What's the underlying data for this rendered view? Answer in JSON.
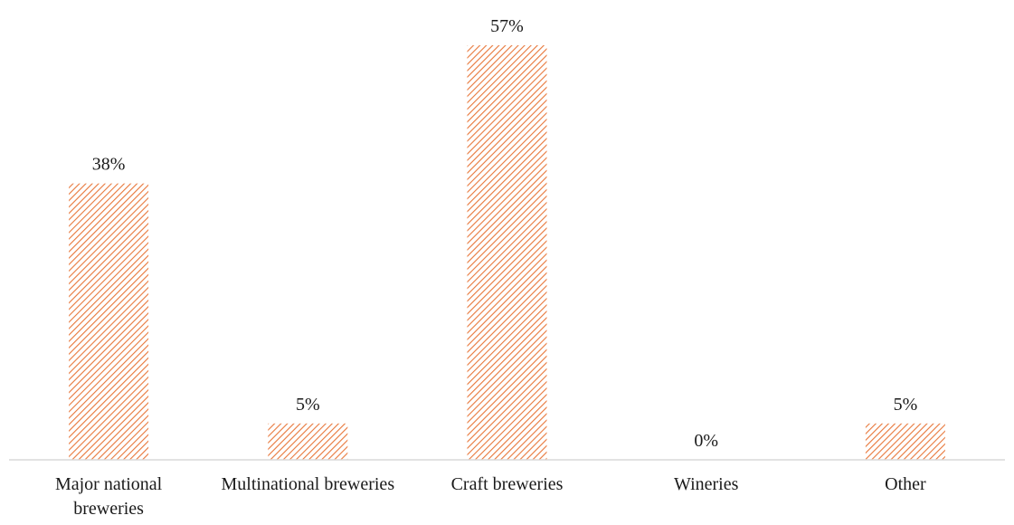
{
  "chart_data": {
    "type": "bar",
    "categories": [
      [
        "Major national",
        "breweries"
      ],
      [
        "Multinational breweries"
      ],
      [
        "Craft breweries"
      ],
      [
        "Wineries"
      ],
      [
        "Other"
      ]
    ],
    "values": [
      38,
      5,
      57,
      0,
      5
    ],
    "data_labels": [
      "38%",
      "5%",
      "57%",
      "0%",
      "5%"
    ],
    "title": "",
    "xlabel": "",
    "ylabel": "",
    "ylim": [
      0,
      57
    ],
    "grid": false,
    "legend": "none",
    "bar_color": "#e8773a",
    "bar_fill": "diagonal-hatch",
    "axis_color": "#d9d9d9"
  }
}
